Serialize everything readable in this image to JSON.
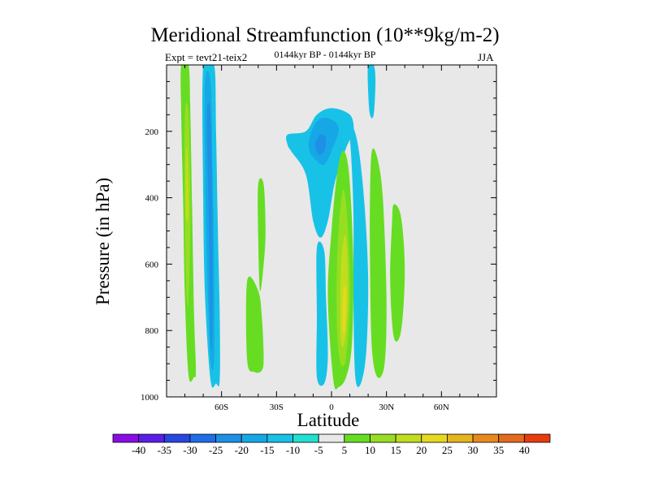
{
  "title": "Meridional Streamfunction (10**9kg/m-2)",
  "subtitle": "0144kyr BP - 0144kyr BP",
  "expt_label": "Expt = tevt21-teix2",
  "season": "JJA",
  "chart_data": {
    "type": "contour-fill",
    "title": "Meridional Streamfunction (10**9kg/m-2)",
    "xlabel": "Latitude",
    "ylabel": "Pressure (in hPa)",
    "xlim": [
      -90,
      90
    ],
    "ylim": [
      1000,
      0
    ],
    "x_ticks": [
      {
        "value": -60,
        "label": "60S"
      },
      {
        "value": -30,
        "label": "30S"
      },
      {
        "value": 0,
        "label": "0"
      },
      {
        "value": 30,
        "label": "30N"
      },
      {
        "value": 60,
        "label": "60N"
      }
    ],
    "y_ticks": [
      {
        "value": 200,
        "label": "200"
      },
      {
        "value": 400,
        "label": "400"
      },
      {
        "value": 600,
        "label": "600"
      },
      {
        "value": 800,
        "label": "800"
      },
      {
        "value": 1000,
        "label": "1000"
      }
    ],
    "background_color": "#e8e8e8",
    "colorbar": {
      "levels": [
        "-40",
        "-35",
        "-30",
        "-25",
        "-20",
        "-15",
        "-10",
        "-5",
        "5",
        "10",
        "15",
        "20",
        "25",
        "30",
        "35",
        "40"
      ],
      "colors": [
        "#8a0ce6",
        "#5a1ee6",
        "#2846e0",
        "#1e6ee6",
        "#1e90e6",
        "#16a8e6",
        "#18c2e6",
        "#20e0d0",
        "#e8e8e8",
        "#66dd22",
        "#98dd22",
        "#c2dd1e",
        "#e6d81e",
        "#e6b41e",
        "#e68a1e",
        "#e66a1e",
        "#e63c0e"
      ]
    },
    "regions": [
      {
        "name": "sh-polar-positive-cell",
        "value": 10,
        "level": 9,
        "points": [
          [
            -82,
            0
          ],
          [
            -78,
            0
          ],
          [
            -77,
            150
          ],
          [
            -76,
            450
          ],
          [
            -75,
            750
          ],
          [
            -74,
            920
          ],
          [
            -75,
            940
          ],
          [
            -78,
            935
          ],
          [
            -80,
            700
          ],
          [
            -81,
            400
          ],
          [
            -82,
            150
          ]
        ]
      },
      {
        "name": "sh-polar-positive-core",
        "value": 15,
        "level": 10,
        "points": [
          [
            -80,
            150
          ],
          [
            -78,
            150
          ],
          [
            -77,
            450
          ],
          [
            -78,
            700
          ],
          [
            -79,
            700
          ],
          [
            -80,
            450
          ]
        ]
      },
      {
        "name": "sh-polar-positive-inner",
        "value": 20,
        "level": 11,
        "points": [
          [
            -79.5,
            270
          ],
          [
            -78.5,
            270
          ],
          [
            -78,
            450
          ],
          [
            -79.5,
            450
          ]
        ]
      },
      {
        "name": "sh-deep-negative-cell",
        "value": -10,
        "level": 6,
        "points": [
          [
            -70,
            0
          ],
          [
            -64,
            0
          ],
          [
            -63,
            200
          ],
          [
            -62,
            500
          ],
          [
            -61,
            750
          ],
          [
            -61,
            950
          ],
          [
            -63,
            960
          ],
          [
            -66,
            950
          ],
          [
            -69,
            700
          ],
          [
            -70,
            400
          ]
        ]
      },
      {
        "name": "sh-deep-negative-mid",
        "value": -15,
        "level": 5,
        "points": [
          [
            -69,
            50
          ],
          [
            -66,
            50
          ],
          [
            -65,
            300
          ],
          [
            -64,
            600
          ],
          [
            -64,
            880
          ],
          [
            -66,
            890
          ],
          [
            -68,
            600
          ],
          [
            -69,
            300
          ]
        ]
      },
      {
        "name": "sh-deep-negative-core",
        "value": -20,
        "level": 4,
        "points": [
          [
            -68,
            150
          ],
          [
            -66,
            150
          ],
          [
            -65,
            450
          ],
          [
            -65,
            800
          ],
          [
            -66,
            820
          ],
          [
            -67,
            450
          ]
        ]
      },
      {
        "name": "midlat-positive-a",
        "value": 10,
        "level": 9,
        "points": [
          [
            -46,
            650
          ],
          [
            -40,
            680
          ],
          [
            -38,
            760
          ],
          [
            -37,
            880
          ],
          [
            -38,
            920
          ],
          [
            -42,
            925
          ],
          [
            -46,
            890
          ]
        ]
      },
      {
        "name": "midlat-positive-b",
        "value": 10,
        "level": 9,
        "points": [
          [
            -40,
            360
          ],
          [
            -37,
            360
          ],
          [
            -36,
            500
          ],
          [
            -37,
            600
          ],
          [
            -39,
            680
          ],
          [
            -40,
            520
          ]
        ]
      },
      {
        "name": "upper-trop-negative",
        "value": -10,
        "level": 6,
        "points": [
          [
            -24,
            210
          ],
          [
            -14,
            200
          ],
          [
            -8,
            150
          ],
          [
            0,
            130
          ],
          [
            10,
            150
          ],
          [
            12,
            200
          ],
          [
            8,
            250
          ],
          [
            2,
            350
          ],
          [
            -2,
            470
          ],
          [
            -6,
            520
          ],
          [
            -10,
            470
          ],
          [
            -14,
            330
          ],
          [
            -22,
            260
          ],
          [
            -24,
            240
          ]
        ]
      },
      {
        "name": "upper-trop-negative-core",
        "value": -15,
        "level": 5,
        "points": [
          [
            -12,
            220
          ],
          [
            -8,
            170
          ],
          [
            -2,
            160
          ],
          [
            4,
            190
          ],
          [
            0,
            260
          ],
          [
            -4,
            300
          ],
          [
            -8,
            290
          ],
          [
            -12,
            260
          ]
        ]
      },
      {
        "name": "upper-trop-negative-inner",
        "value": -20,
        "level": 4,
        "points": [
          [
            -9,
            240
          ],
          [
            -6,
            210
          ],
          [
            -3,
            220
          ],
          [
            -4,
            260
          ],
          [
            -7,
            270
          ]
        ]
      },
      {
        "name": "sh-subtrop-negative-low",
        "value": -10,
        "level": 6,
        "points": [
          [
            -8,
            550
          ],
          [
            -4,
            560
          ],
          [
            -3,
            700
          ],
          [
            -2,
            880
          ],
          [
            -4,
            960
          ],
          [
            -8,
            940
          ],
          [
            -8,
            760
          ]
        ]
      },
      {
        "name": "tropical-positive-cell",
        "value": 10,
        "level": 9,
        "points": [
          [
            3,
            330
          ],
          [
            6,
            260
          ],
          [
            9,
            300
          ],
          [
            11,
            450
          ],
          [
            12,
            650
          ],
          [
            11,
            850
          ],
          [
            8,
            940
          ],
          [
            4,
            970
          ],
          [
            1,
            950
          ],
          [
            -2,
            700
          ],
          [
            0,
            500
          ]
        ]
      },
      {
        "name": "tropical-positive-mid",
        "value": 15,
        "level": 10,
        "points": [
          [
            5,
            420
          ],
          [
            7,
            380
          ],
          [
            9,
            500
          ],
          [
            10,
            700
          ],
          [
            8,
            880
          ],
          [
            5,
            900
          ],
          [
            3,
            800
          ],
          [
            3,
            600
          ]
        ]
      },
      {
        "name": "tropical-positive-core",
        "value": 20,
        "level": 11,
        "points": [
          [
            6,
            550
          ],
          [
            8,
            520
          ],
          [
            9,
            700
          ],
          [
            7,
            840
          ],
          [
            5,
            820
          ],
          [
            5,
            650
          ]
        ]
      },
      {
        "name": "tropical-positive-inner",
        "value": 25,
        "level": 12,
        "points": [
          [
            6.5,
            680
          ],
          [
            8,
            680
          ],
          [
            7.5,
            800
          ],
          [
            6,
            790
          ]
        ]
      },
      {
        "name": "nh-subtrop-negative",
        "value": -10,
        "level": 6,
        "points": [
          [
            10,
            200
          ],
          [
            12,
            190
          ],
          [
            15,
            260
          ],
          [
            18,
            420
          ],
          [
            20,
            640
          ],
          [
            19,
            860
          ],
          [
            16,
            960
          ],
          [
            13,
            940
          ],
          [
            12,
            720
          ],
          [
            12,
            460
          ],
          [
            11,
            300
          ]
        ]
      },
      {
        "name": "nh-positive-a",
        "value": 10,
        "level": 9,
        "points": [
          [
            22,
            260
          ],
          [
            25,
            280
          ],
          [
            28,
            400
          ],
          [
            30,
            700
          ],
          [
            29,
            900
          ],
          [
            25,
            940
          ],
          [
            22,
            850
          ],
          [
            21,
            600
          ],
          [
            21,
            400
          ]
        ]
      },
      {
        "name": "nh-positive-b",
        "value": 10,
        "level": 9,
        "points": [
          [
            34,
            420
          ],
          [
            38,
            460
          ],
          [
            40,
            620
          ],
          [
            38,
            800
          ],
          [
            34,
            820
          ],
          [
            32,
            650
          ],
          [
            33,
            480
          ]
        ]
      },
      {
        "name": "nh-upper-negative",
        "value": -10,
        "level": 6,
        "points": [
          [
            20,
            0
          ],
          [
            23,
            0
          ],
          [
            24,
            50
          ],
          [
            23,
            150
          ],
          [
            21,
            150
          ],
          [
            20,
            80
          ]
        ]
      }
    ]
  }
}
